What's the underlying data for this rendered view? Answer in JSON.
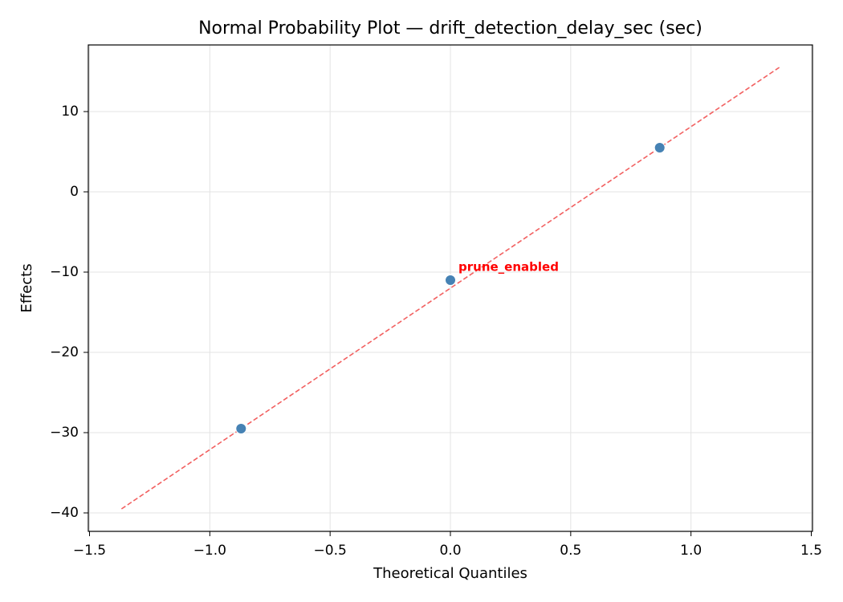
{
  "chart_data": {
    "type": "scatter",
    "title": "Normal Probability Plot — drift_detection_delay_sec (sec)",
    "x_label": "Theoretical Quantiles",
    "y_label": "Effects",
    "xlim": [
      -1.505,
      1.505
    ],
    "ylim": [
      -42.3,
      18.3
    ],
    "xticks": [
      {
        "value": -1.5,
        "label": "−1.5"
      },
      {
        "value": -1.0,
        "label": "−1.0"
      },
      {
        "value": -0.5,
        "label": "−0.5"
      },
      {
        "value": 0,
        "label": "0.0"
      },
      0.5,
      {
        "value": 1.0,
        "label": "1.0"
      },
      1.5
    ],
    "yticks": [
      {
        "value": -40,
        "label": "−40"
      },
      {
        "value": -30,
        "label": "−30"
      },
      {
        "value": -20,
        "label": "−20"
      },
      {
        "value": -10,
        "label": "−10"
      },
      0,
      10
    ],
    "grid": true,
    "series": [
      {
        "color": "#4682b4",
        "x": [
          -0.87,
          0,
          0.87
        ],
        "values": [
          -29.5,
          -11.0,
          5.5
        ],
        "labels": [
          null,
          "prune_enabled",
          null
        ],
        "label_color": "#ff0000"
      }
    ],
    "reference_line": {
      "color": "#f26060",
      "style": "dashed",
      "x": [
        -1.367,
        1.367
      ],
      "values": [
        -39.5,
        15.5
      ]
    }
  }
}
